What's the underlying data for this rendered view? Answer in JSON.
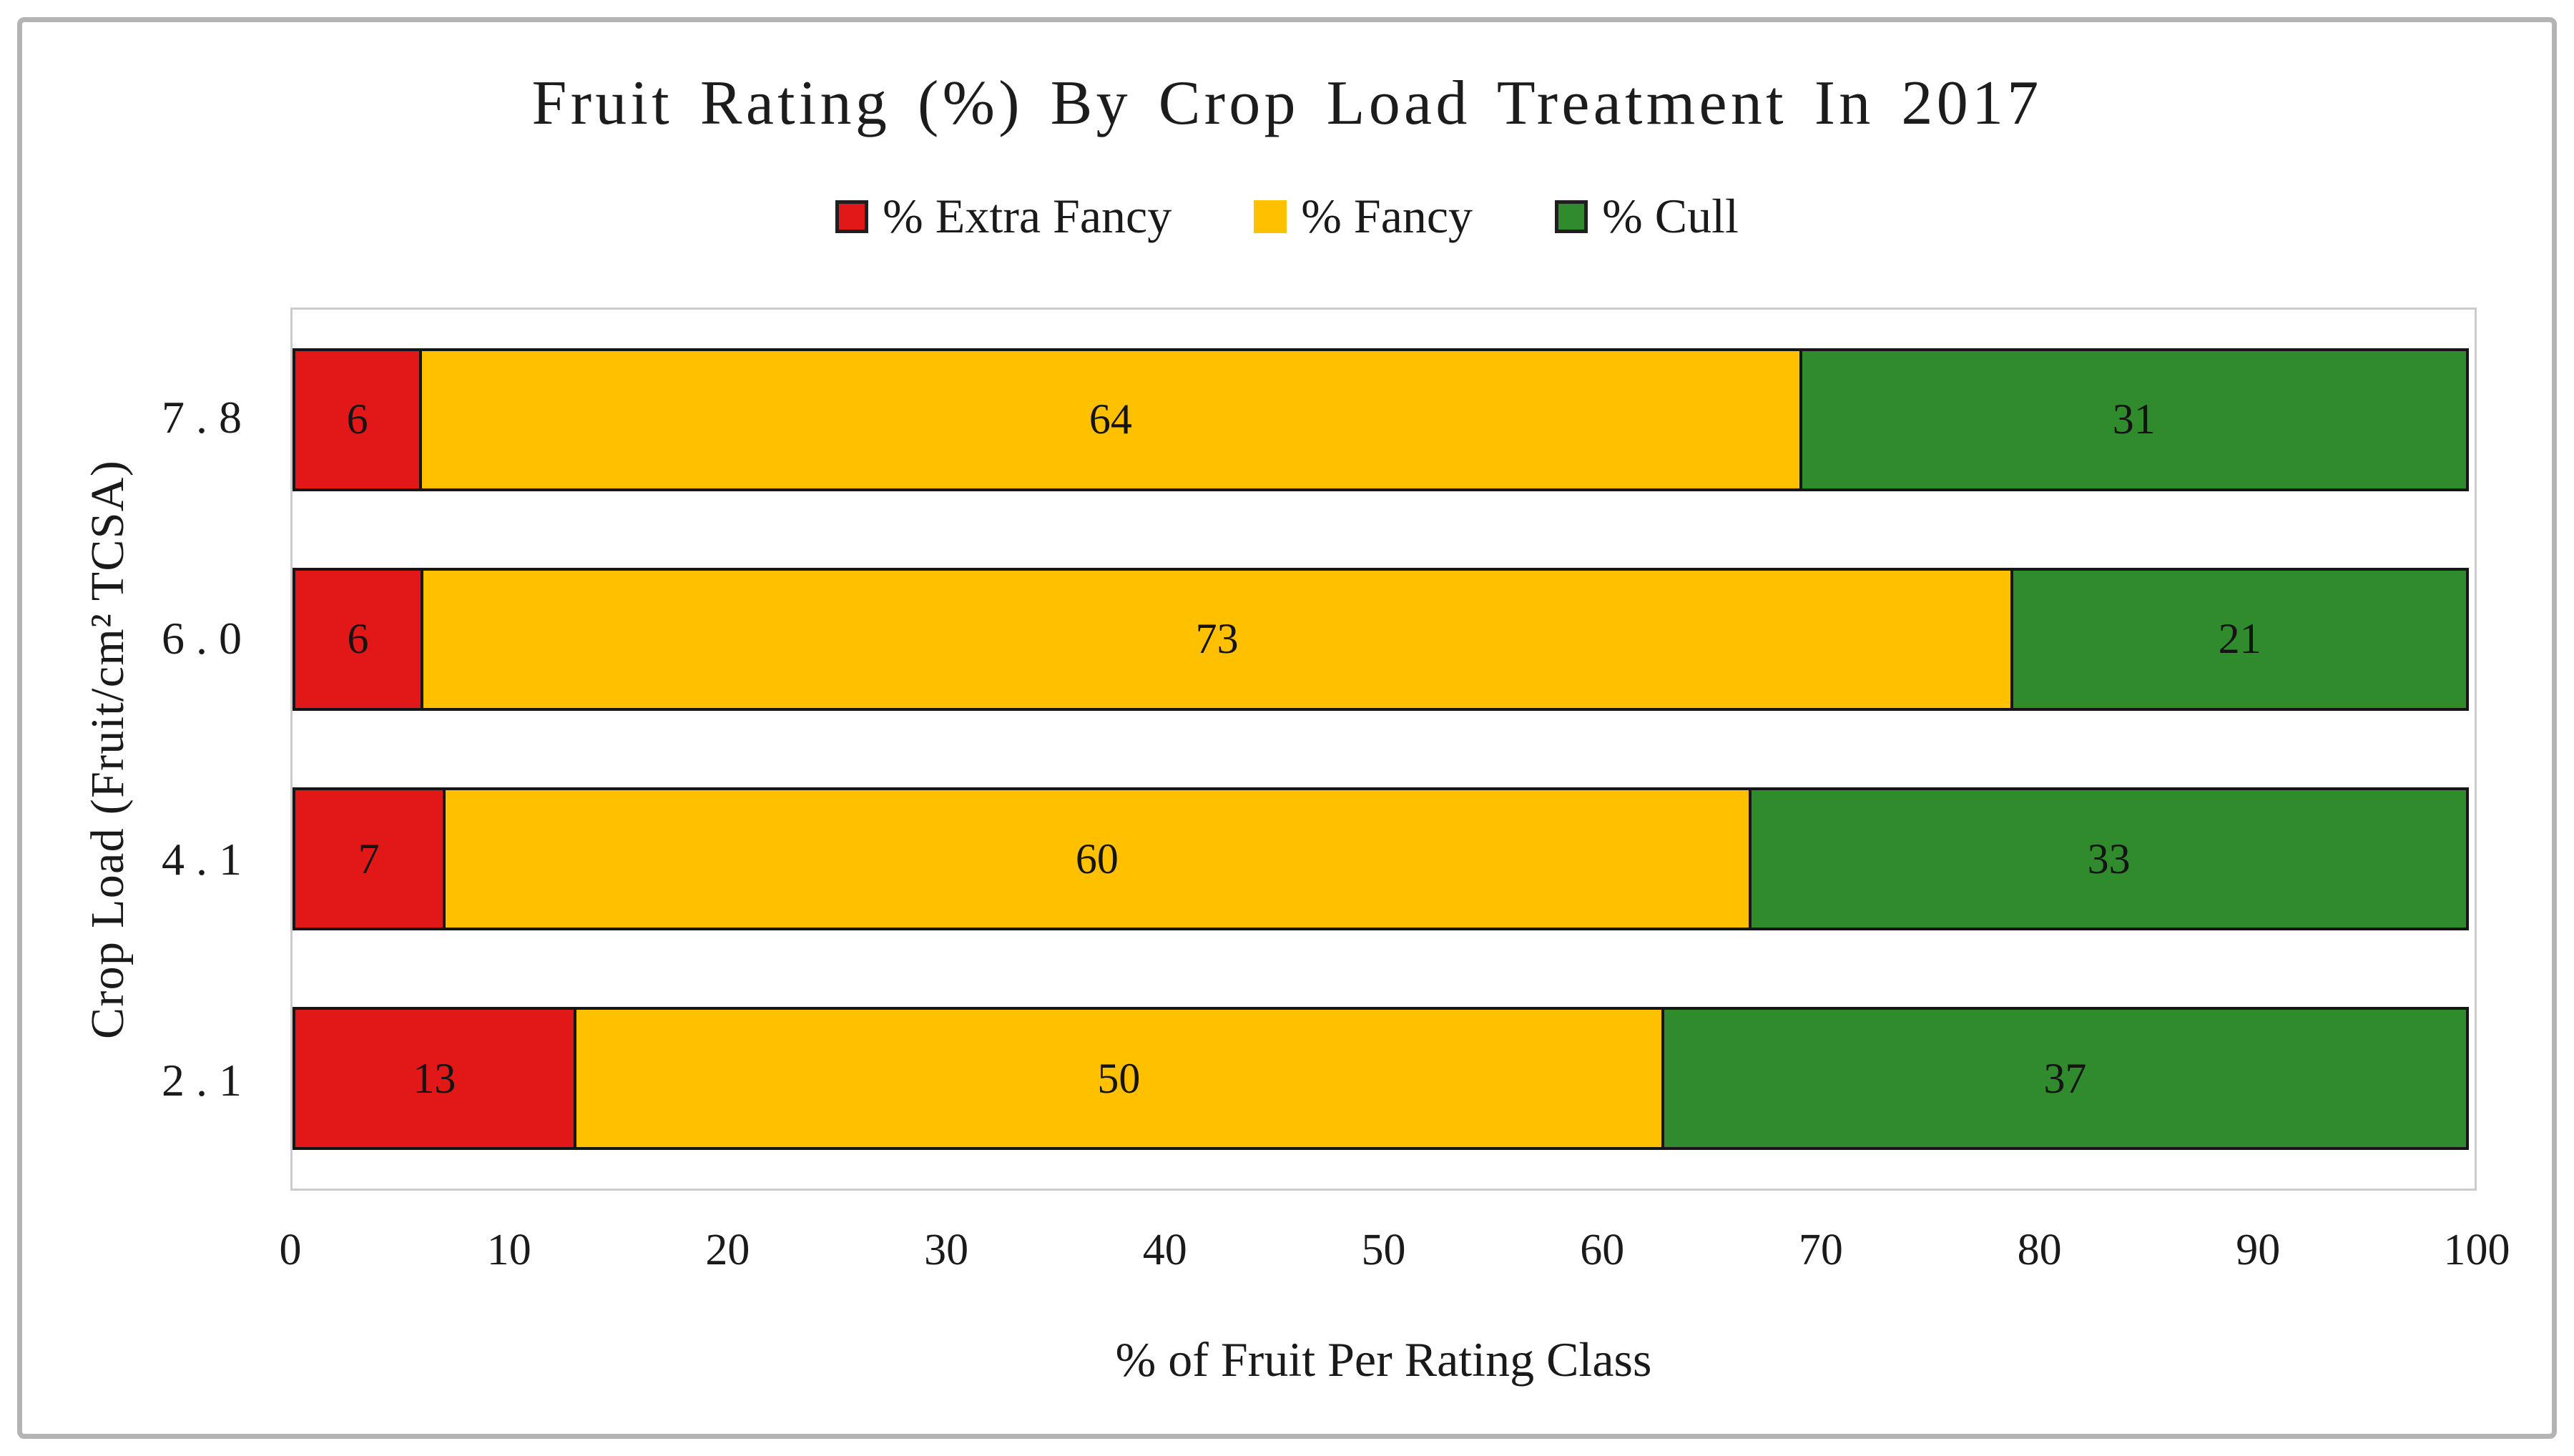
{
  "title": "Fruit Rating (%) By Crop Load Treatment In 2017",
  "legend": {
    "items": [
      {
        "label": "% Extra Fancy",
        "color": "#E21717",
        "bordered": true
      },
      {
        "label": "% Fancy",
        "color": "#FFC000",
        "bordered": false
      },
      {
        "label": "% Cull",
        "color": "#2F8B2C",
        "bordered": true
      }
    ]
  },
  "chart_data": {
    "type": "bar",
    "orientation": "horizontal",
    "stacked": true,
    "title": "Fruit Rating (%) By Crop Load Treatment In 2017",
    "categories": [
      "7.8",
      "6.0",
      "4.1",
      "2.1"
    ],
    "series": [
      {
        "name": "% Extra Fancy",
        "color": "#E21717",
        "values": [
          6,
          6,
          7,
          13
        ]
      },
      {
        "name": "% Fancy",
        "color": "#FFC000",
        "values": [
          64,
          73,
          60,
          50
        ]
      },
      {
        "name": "% Cull",
        "color": "#2F8B2C",
        "values": [
          31,
          21,
          33,
          37
        ]
      }
    ],
    "xlabel": "% of Fruit Per Rating Class",
    "ylabel": "Crop Load (Fruit/cm² TCSA)",
    "xlim": [
      0,
      100
    ],
    "xticks": [
      "0",
      "10",
      "20",
      "30",
      "40",
      "50",
      "60",
      "70",
      "80",
      "90",
      "100"
    ],
    "grid": false,
    "legend_position": "top-center",
    "bar_border_color": "#161616",
    "plot_border_color": "#cccccc"
  }
}
